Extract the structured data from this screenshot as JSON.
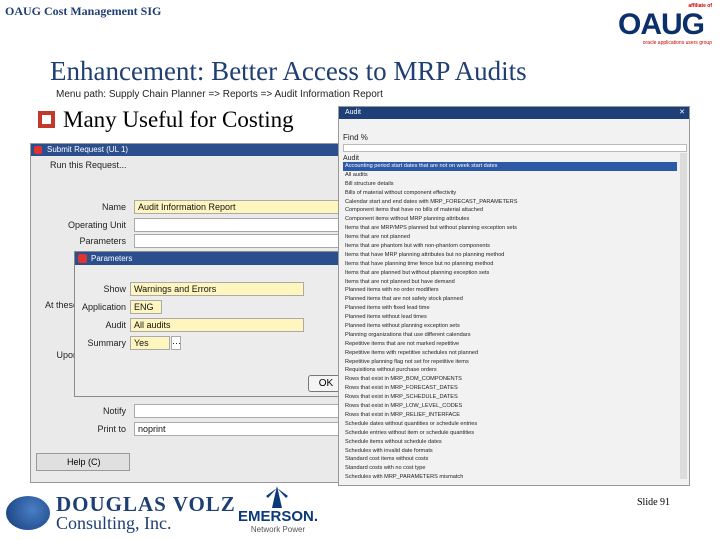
{
  "header": {
    "sig_title": "OAUG Cost Management SIG",
    "oaug_affiliate": "affiliate of",
    "oaug_name": "OAUG",
    "oaug_tagline": "oracle applications users group"
  },
  "slide": {
    "title": "Enhancement:  Better Access to MRP Audits",
    "menu_path": "Menu path:  Supply Chain Planner => Reports  => Audit Information Report",
    "bullet": "Many Useful for Costing",
    "number": "Slide 91"
  },
  "submit_window": {
    "title": "Submit Request (UL 1)",
    "run_this_request_label": "Run this Request...",
    "name_label": "Name",
    "name_value": "Audit Information Report",
    "operating_unit_label": "Operating Unit",
    "parameters_label": "Parameters",
    "at_these_label": "At these",
    "upon_label": "Upon",
    "notify_label": "Notify",
    "print_to_label": "Print to",
    "print_to_value": "noprint",
    "help_label": "Help (C)"
  },
  "parameters_window": {
    "title": "Parameters",
    "show_label": "Show",
    "show_value": "Warnings and Errors",
    "application_label": "Application",
    "application_value": "ENG",
    "audit_label": "Audit",
    "audit_value": "All audits",
    "summary_label": "Summary",
    "summary_value": "Yes",
    "ok_label": "OK"
  },
  "audit_list": {
    "header": "Audit",
    "find_label": "Find %",
    "column_header": "Audit",
    "selected_index": 0,
    "items": [
      "Accounting period start dates that are not on week start dates",
      "All audits",
      "Bill structure details",
      "Bills of material without component effectivity",
      "Calendar start and end dates with MRP_FORECAST_PARAMETERS",
      "Component items that have no bills of material attached",
      "Component items without MRP planning attributes",
      "Items that are MRP/MPS planned but without planning exception sets",
      "Items that are not planned",
      "Items that are phantom but with non-phantom components",
      "Items that have MRP planning attributes but no planning method",
      "Items that have planning time fence but no planning method",
      "Items that are planned but without planning exception sets",
      "Items that are not planned but have demand",
      "Planned items with no order modifiers",
      "Planned items that are not safety stock planned",
      "Planned items with fixed lead time",
      "Planned items without lead times",
      "Planned items without planning exception sets",
      "Planning organizations that use different calendars",
      "Repetitive items that are not marked repetitive",
      "Repetitive items with repetitive schedules not planned",
      "Repetitive planning flag not set for repetitive items",
      "Requisitions without purchase orders",
      "Rows that exist in MRP_BOM_COMPONENTS",
      "Rows that exist in MRP_FORECAST_DATES",
      "Rows that exist in MRP_SCHEDULE_DATES",
      "Rows that exist in MRP_LOW_LEVEL_CODES",
      "Rows that exist in MRP_RELIEF_INTERFACE",
      "Schedule dates without quantities or schedule entries",
      "Schedule entries without item or schedule quantities",
      "Schedule items without schedule dates",
      "Schedules with invalid date formats",
      "Standard cost items without costs",
      "Standard costs with no cost type",
      "Schedules with MRP_PARAMETERS mismatch"
    ]
  },
  "footer": {
    "douglas_line1": "DOUGLAS VOLZ",
    "douglas_line2": "Consulting, Inc.",
    "emerson_name": "EMERSON.",
    "emerson_sub": "Network Power"
  }
}
